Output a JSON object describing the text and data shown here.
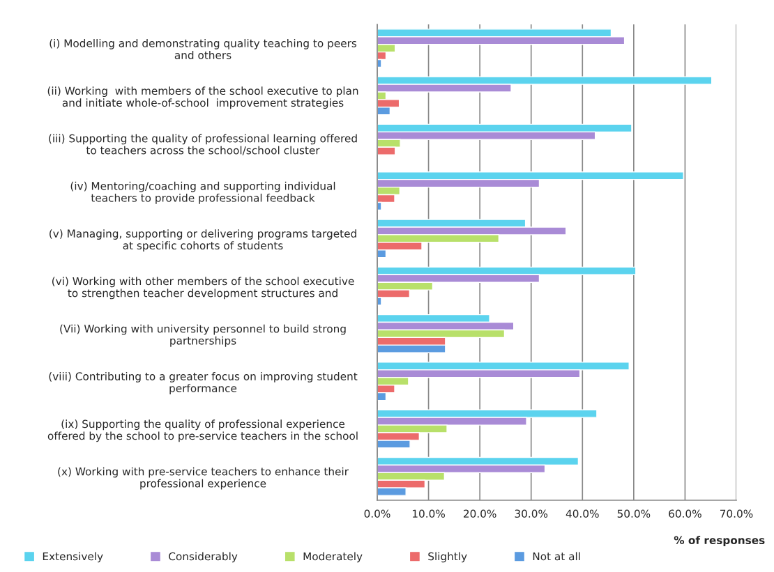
{
  "chart_data": {
    "type": "bar",
    "orientation": "horizontal",
    "xlabel": "% of responses",
    "categories": [
      "(i) Modelling and demonstrating quality teaching to peers\nand others",
      "(ii) Working  with members of the school executive to plan\nand initiate whole-of-school  improvement strategies",
      "(iii) Supporting the quality of professional learning offered\nto teachers across the school/school cluster",
      "(iv) Mentoring/coaching and supporting individual\nteachers to provide professional feedback",
      "(v) Managing, supporting or delivering programs targeted\nat specific cohorts of students",
      "(vi) Working with other members of the school executive\nto strengthen teacher development structures and",
      "(Vii) Working with university personnel to build strong\npartnerships",
      "(viii) Contributing to a greater focus on improving student\nperformance",
      "(ix) Supporting the quality of professional experience\noffered by the school to pre-service teachers in the school",
      "(x) Working with pre-service teachers to enhance their\nprofessional experience"
    ],
    "series": [
      {
        "name": "Extensively",
        "color": "#5bd3ee",
        "values": [
          45.6,
          65.2,
          49.6,
          59.7,
          28.9,
          50.4,
          21.9,
          49.1,
          42.8,
          39.2
        ]
      },
      {
        "name": "Considerably",
        "color": "#a98bd6",
        "values": [
          48.2,
          26.1,
          42.5,
          31.6,
          36.8,
          31.6,
          26.6,
          39.5,
          29.1,
          32.7
        ]
      },
      {
        "name": "Moderately",
        "color": "#b8e06a",
        "values": [
          3.5,
          1.7,
          4.5,
          4.4,
          23.7,
          10.8,
          24.8,
          6.1,
          13.6,
          13.1
        ]
      },
      {
        "name": "Slightly",
        "color": "#ec6b6b",
        "values": [
          1.7,
          4.3,
          3.5,
          3.4,
          8.7,
          6.3,
          13.3,
          3.4,
          8.2,
          9.3
        ]
      },
      {
        "name": "Not at all",
        "color": "#5b9be0",
        "values": [
          0.8,
          2.5,
          null,
          0.8,
          1.7,
          0.8,
          13.3,
          1.7,
          6.4,
          5.6
        ]
      }
    ],
    "xlim": [
      0,
      70
    ],
    "xticks": [
      {
        "value": 0,
        "label": "0.0%"
      },
      {
        "value": 10,
        "label": "10.0%"
      },
      {
        "value": 20,
        "label": "20.0%"
      },
      {
        "value": 30,
        "label": "30.0%"
      },
      {
        "value": 40,
        "label": "40.0%"
      },
      {
        "value": 50,
        "label": "50.0%"
      },
      {
        "value": 60,
        "label": "60.0%"
      },
      {
        "value": 70,
        "label": "70.0%"
      }
    ],
    "grid": "x",
    "legend": "bottom"
  }
}
